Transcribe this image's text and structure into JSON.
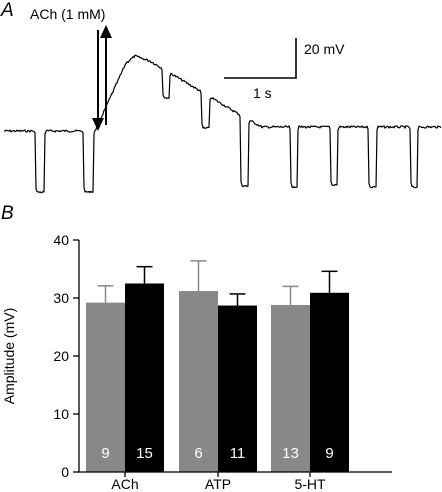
{
  "panels": {
    "a": "A",
    "b": "B"
  },
  "trace": {
    "stimulus_label": "ACh (1 mM)",
    "scale_voltage": "20 mV",
    "scale_time": "1 s"
  },
  "chart_data": {
    "type": "bar",
    "title": "",
    "xlabel": "",
    "ylabel": "Amplitude (mV)",
    "ylim": [
      0,
      40
    ],
    "yticks": [
      0,
      10,
      20,
      30,
      40
    ],
    "grid": false,
    "groups": [
      "ACh",
      "ATP",
      "5-HT"
    ],
    "colors": {
      "control": "#888888",
      "treated": "#000000"
    },
    "bars": [
      {
        "group": "ACh",
        "kind": "control",
        "value": 29.2,
        "error": 2.9,
        "n": "9"
      },
      {
        "group": "ACh",
        "kind": "treated",
        "value": 32.5,
        "error": 2.9,
        "n": "15"
      },
      {
        "group": "ATP",
        "kind": "control",
        "value": 31.2,
        "error": 5.2,
        "n": "6"
      },
      {
        "group": "ATP",
        "kind": "treated",
        "value": 28.7,
        "error": 2.0,
        "n": "11"
      },
      {
        "group": "5-HT",
        "kind": "control",
        "value": 28.8,
        "error": 3.2,
        "n": "13"
      },
      {
        "group": "5-HT",
        "kind": "treated",
        "value": 30.9,
        "error": 3.7,
        "n": "9"
      }
    ]
  }
}
